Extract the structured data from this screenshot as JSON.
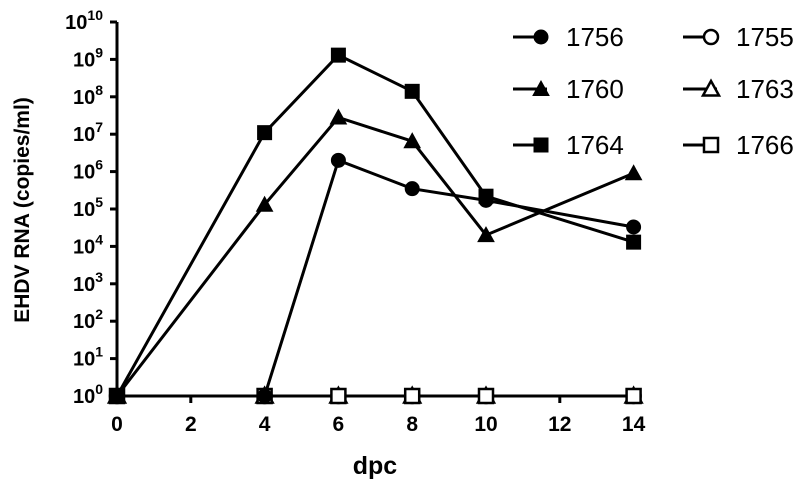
{
  "chart_data": {
    "type": "line",
    "title": "",
    "xlabel": "dpc",
    "ylabel": "EHDV RNA (copies/ml)",
    "x_ticks": [
      "0",
      "2",
      "4",
      "6",
      "8",
      "10",
      "12",
      "14"
    ],
    "y_scale": "log10",
    "y_ticks": [
      {
        "base": "10",
        "exp": "0"
      },
      {
        "base": "10",
        "exp": "1"
      },
      {
        "base": "10",
        "exp": "2"
      },
      {
        "base": "10",
        "exp": "3"
      },
      {
        "base": "10",
        "exp": "4"
      },
      {
        "base": "10",
        "exp": "5"
      },
      {
        "base": "10",
        "exp": "6"
      },
      {
        "base": "10",
        "exp": "7"
      },
      {
        "base": "10",
        "exp": "8"
      },
      {
        "base": "10",
        "exp": "9"
      },
      {
        "base": "10",
        "exp": "10"
      }
    ],
    "xlim": [
      0,
      14
    ],
    "ylim": [
      1,
      10000000000
    ],
    "grid": false,
    "legend_position": "top-right",
    "series": [
      {
        "name": "1756",
        "marker": "circle",
        "filled": true,
        "points": [
          [
            0,
            1
          ],
          [
            4,
            1
          ],
          [
            6,
            2000000
          ],
          [
            8,
            350000
          ],
          [
            10,
            170000
          ],
          [
            14,
            33000
          ]
        ]
      },
      {
        "name": "1760",
        "marker": "triangle",
        "filled": true,
        "points": [
          [
            0,
            1
          ],
          [
            4,
            130000
          ],
          [
            6,
            28000000
          ],
          [
            8,
            6500000
          ],
          [
            10,
            20000
          ],
          [
            14,
            900000
          ]
        ]
      },
      {
        "name": "1764",
        "marker": "square",
        "filled": true,
        "points": [
          [
            0,
            1
          ],
          [
            4,
            11000000
          ],
          [
            6,
            1300000000
          ],
          [
            8,
            140000000
          ],
          [
            10,
            220000
          ],
          [
            14,
            13000
          ]
        ]
      },
      {
        "name": "1755",
        "marker": "circle",
        "filled": false,
        "points": [
          [
            0,
            1
          ],
          [
            4,
            1
          ],
          [
            6,
            1
          ],
          [
            8,
            1
          ],
          [
            10,
            1
          ],
          [
            14,
            1
          ]
        ]
      },
      {
        "name": "1763",
        "marker": "triangle",
        "filled": false,
        "points": [
          [
            0,
            1
          ],
          [
            4,
            1
          ],
          [
            6,
            1
          ],
          [
            8,
            1
          ],
          [
            10,
            1
          ],
          [
            14,
            1
          ]
        ]
      },
      {
        "name": "1766",
        "marker": "square",
        "filled": false,
        "points": [
          [
            0,
            1
          ],
          [
            4,
            1
          ],
          [
            6,
            1
          ],
          [
            8,
            1
          ],
          [
            10,
            1
          ],
          [
            14,
            1
          ]
        ]
      }
    ]
  }
}
